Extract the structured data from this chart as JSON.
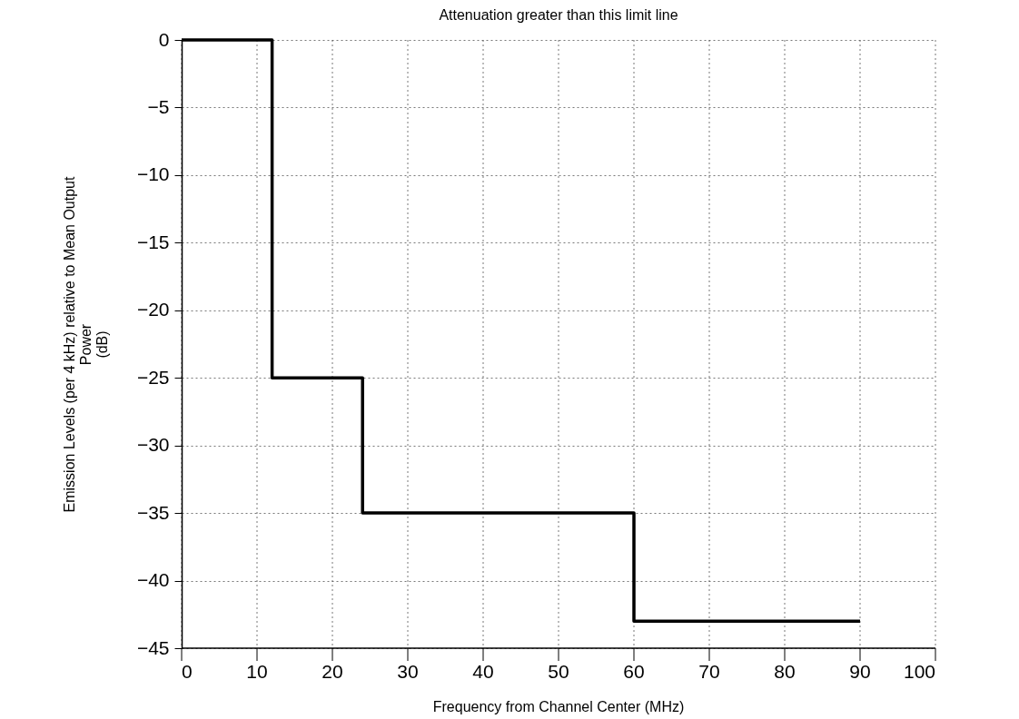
{
  "chart_data": {
    "type": "step",
    "title": "Attenuation greater than this limit line",
    "xlabel": "Frequency from Channel Center (MHz)",
    "ylabel": "Emission Levels (per 4 kHz) relative to Mean Output\nPower\n(dB)",
    "x": [
      0,
      12,
      24,
      60,
      90
    ],
    "series": [
      {
        "color": "#000000",
        "values": [
          0,
          -25,
          -35,
          -43,
          -43
        ]
      }
    ],
    "xlim": [
      0,
      100
    ],
    "xticks": [
      0,
      10,
      20,
      30,
      40,
      50,
      60,
      70,
      80,
      90,
      100
    ],
    "ylim": [
      -45,
      0
    ],
    "yticks": [
      0,
      -5,
      -10,
      -15,
      -20,
      -25,
      -30,
      -35,
      -40,
      -45
    ],
    "grid": true,
    "marker": "none",
    "line_style": "solid"
  }
}
